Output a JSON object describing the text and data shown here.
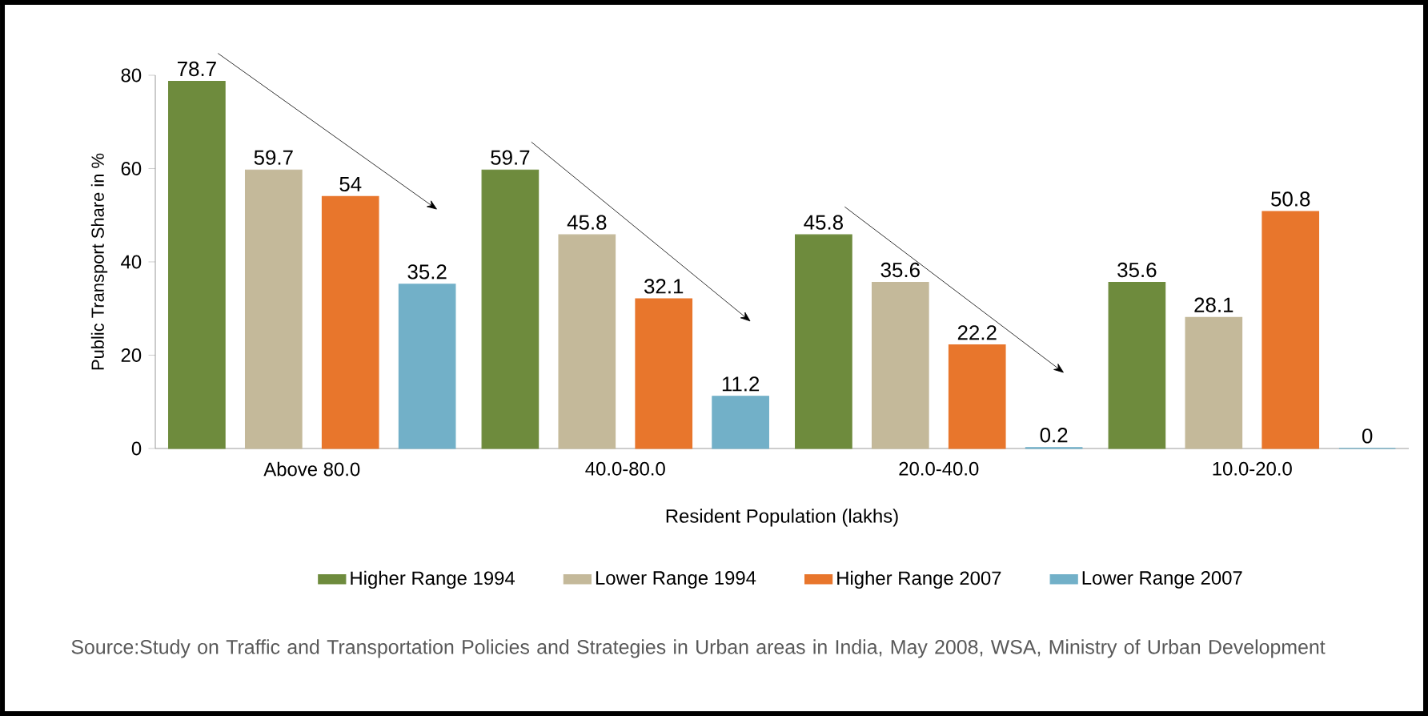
{
  "chart_data": {
    "type": "bar",
    "xlabel": "Resident Population (lakhs)",
    "ylabel": "Public Transport Share in %",
    "categories": [
      "Above 80.0",
      "40.0-80.0",
      "20.0-40.0",
      "10.0-20.0"
    ],
    "series": [
      {
        "name": "Higher Range 1994",
        "color": "#6e8b3d",
        "values": [
          78.7,
          59.7,
          45.8,
          35.6
        ]
      },
      {
        "name": "Lower Range 1994",
        "color": "#c4b99a",
        "values": [
          59.7,
          45.8,
          35.6,
          28.1
        ]
      },
      {
        "name": "Higher Range 2007",
        "color": "#e8762c",
        "values": [
          54,
          32.1,
          22.2,
          50.8
        ]
      },
      {
        "name": "Lower Range 2007",
        "color": "#72b0c8",
        "values": [
          35.2,
          11.2,
          0.2,
          0
        ]
      }
    ],
    "ylim": [
      0,
      80
    ],
    "yticks": [
      0,
      20,
      40,
      60,
      80
    ],
    "data_labels": true,
    "legend": "bottom",
    "grid": false,
    "annotations": [
      "Source:Study on Traffic and Transportation Policies and Strategies in Urban areas in India, May 2008, WSA, Ministry of Urban Development"
    ]
  }
}
